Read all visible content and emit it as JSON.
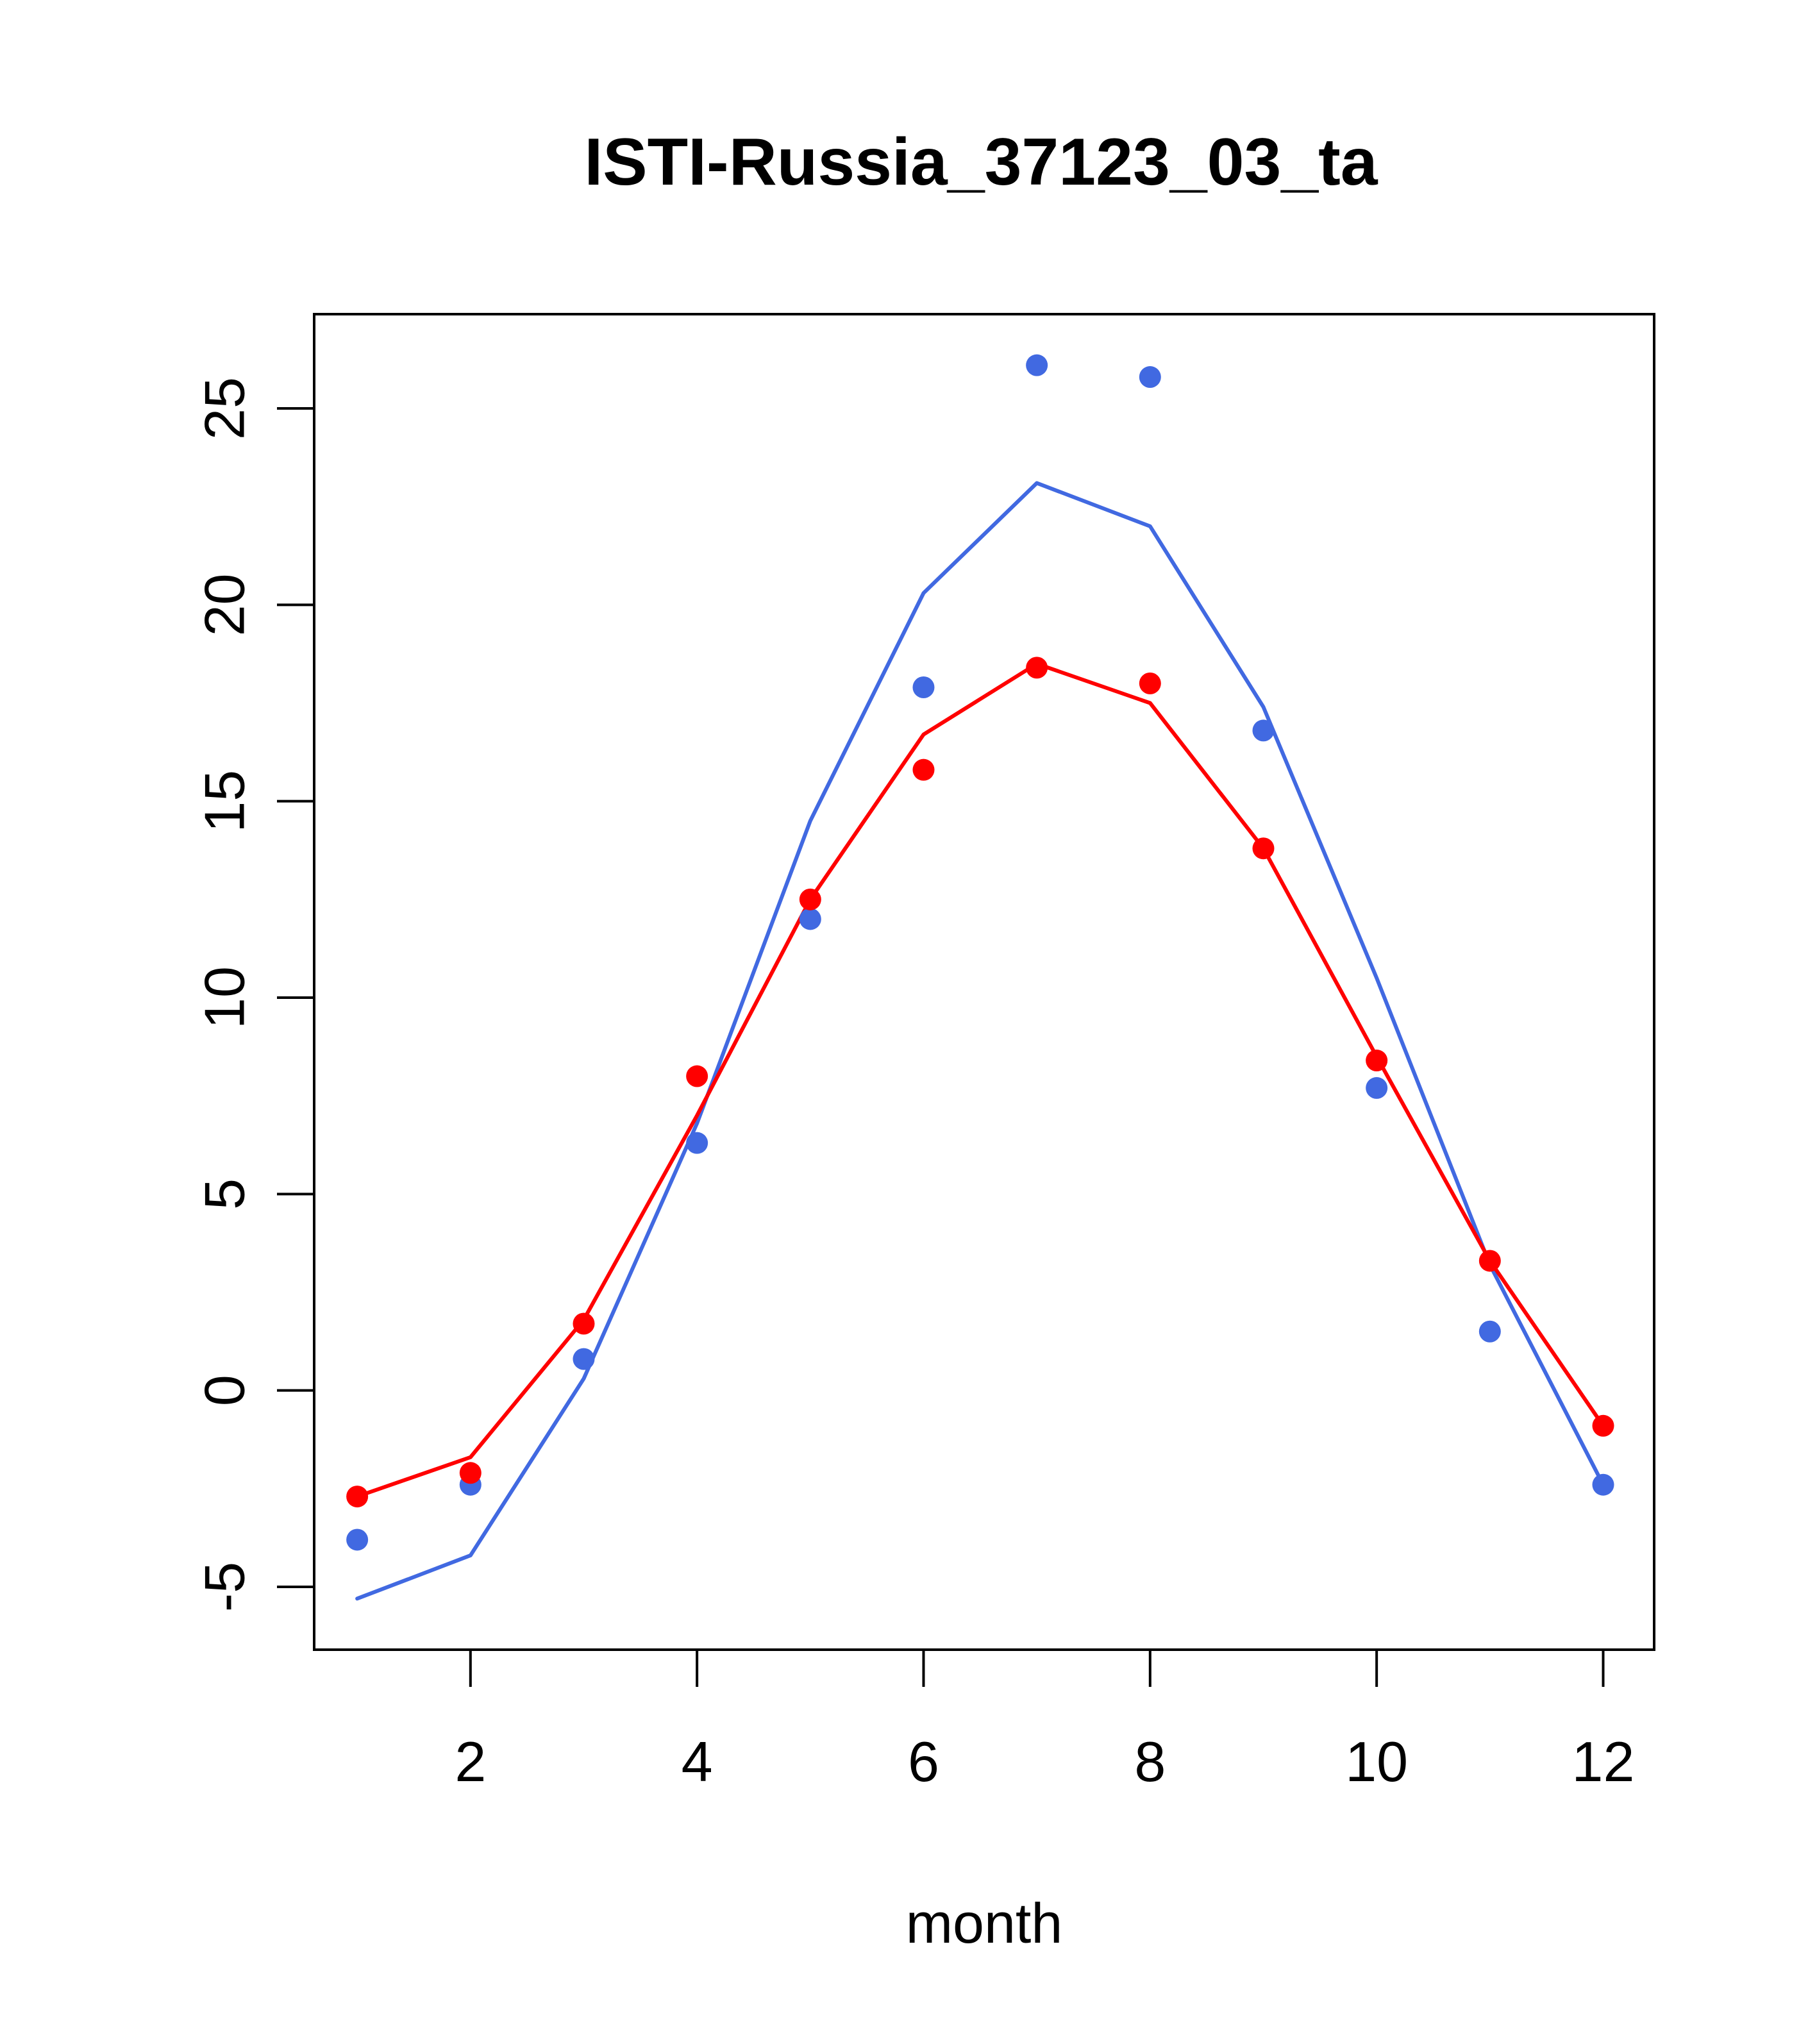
{
  "chart_data": {
    "type": "scatter",
    "title": "ISTI-Russia_37123_03_ta",
    "xlabel": "month",
    "ylabel": "",
    "xlim": [
      0.62,
      12.45
    ],
    "ylim": [
      -6.6,
      27.4
    ],
    "x_ticks": [
      2,
      4,
      6,
      8,
      10,
      12
    ],
    "y_ticks": [
      -5,
      0,
      5,
      10,
      15,
      20,
      25
    ],
    "x_tick_labels": [
      "2",
      "4",
      "6",
      "8",
      "10",
      "12"
    ],
    "y_tick_labels": [
      "-5",
      "0",
      "5",
      "10",
      "15",
      "20",
      "25"
    ],
    "grid": false,
    "legend": false,
    "series": [
      {
        "kind": "points",
        "color": "#4169E1",
        "x": [
          1,
          2,
          3,
          4,
          5,
          6,
          7,
          8,
          9,
          10,
          11,
          12
        ],
        "y": [
          -3.8,
          -2.4,
          0.8,
          6.3,
          12.0,
          17.9,
          26.1,
          25.8,
          16.8,
          7.7,
          1.5,
          -2.4
        ]
      },
      {
        "kind": "points",
        "color": "#FF0000",
        "x": [
          1,
          2,
          3,
          4,
          5,
          6,
          7,
          8,
          9,
          10,
          11,
          12
        ],
        "y": [
          -2.7,
          -2.1,
          1.7,
          8.0,
          12.5,
          15.8,
          18.4,
          18.0,
          13.8,
          8.4,
          3.3,
          -0.9
        ]
      },
      {
        "kind": "line",
        "color": "#4169E1",
        "x": [
          1,
          2,
          3,
          4,
          5,
          6,
          7,
          8,
          9,
          10,
          11,
          12
        ],
        "y": [
          -5.3,
          -4.2,
          0.3,
          6.8,
          14.5,
          20.3,
          23.1,
          22.0,
          17.4,
          10.5,
          3.2,
          -2.4
        ]
      },
      {
        "kind": "line",
        "color": "#FF0000",
        "x": [
          1,
          2,
          3,
          4,
          5,
          6,
          7,
          8,
          9,
          10,
          11,
          12
        ],
        "y": [
          -2.7,
          -1.7,
          1.8,
          7.0,
          12.5,
          16.7,
          18.5,
          17.5,
          13.8,
          8.5,
          3.3,
          -0.9
        ]
      }
    ]
  }
}
